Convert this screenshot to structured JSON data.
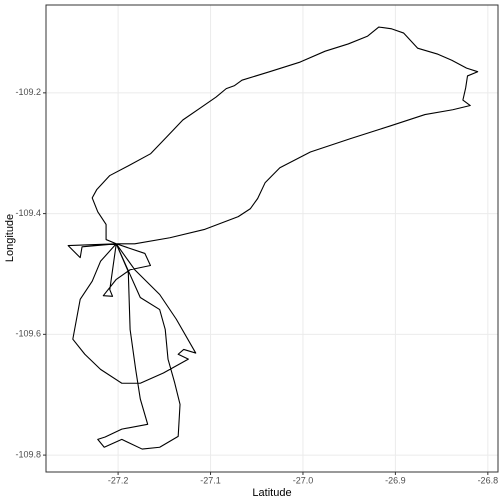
{
  "chart_data": {
    "type": "line",
    "x_label": "Latitude",
    "y_label": "Longitude",
    "color": "#000000",
    "grid": true,
    "xlim": [
      -27.278,
      -26.789
    ],
    "ylim": [
      -109.828,
      -109.0545
    ],
    "xticks": [
      -27.2,
      -27.1,
      {
        "value": -27,
        "label": "-27.0"
      },
      -26.9,
      -26.8
    ],
    "yticks": [
      -109.2,
      -109.4,
      -109.6,
      -109.8
    ],
    "x": [
      -27.202,
      -27.213,
      -27.213,
      -27.222,
      -27.228,
      -27.223,
      -27.209,
      -27.189,
      -27.165,
      -27.148,
      -27.13,
      -27.111,
      -27.094,
      -27.083,
      -27.074,
      -27.066,
      -27.036,
      -27.003,
      -26.976,
      -26.951,
      -26.93,
      -26.918,
      -26.904,
      -26.891,
      -26.876,
      -26.854,
      -26.839,
      -26.823,
      -26.811,
      -26.822,
      -26.824,
      -26.827,
      -26.819,
      -26.838,
      -26.868,
      -26.906,
      -26.949,
      -26.992,
      -27.025,
      -27.041,
      -27.049,
      -27.057,
      -27.07,
      -27.106,
      -27.144,
      -27.182,
      -27.202,
      -27.254,
      -27.241,
      -27.239,
      -27.202,
      -27.171,
      -27.165,
      -27.187,
      -27.202,
      -27.216,
      -27.206,
      -27.209,
      -27.202,
      -27.219,
      -27.228,
      -27.241,
      -27.249,
      -27.236,
      -27.219,
      -27.196,
      -27.176,
      -27.151,
      -27.124,
      -27.135,
      -27.129,
      -27.116,
      -27.137,
      -27.155,
      -27.182,
      -27.202,
      -27.189,
      -27.187,
      -27.181,
      -27.176,
      -27.168,
      -27.196,
      -27.214,
      -27.222,
      -27.215,
      -27.196,
      -27.174,
      -27.155,
      -27.135,
      -27.133,
      -27.139,
      -27.146,
      -27.149,
      -27.155,
      -27.176,
      -27.202
    ],
    "values": [
      -109.45,
      -109.443,
      -109.418,
      -109.397,
      -109.374,
      -109.36,
      -109.337,
      -109.321,
      -109.301,
      -109.274,
      -109.245,
      -109.225,
      -109.207,
      -109.193,
      -109.188,
      -109.179,
      -109.165,
      -109.149,
      -109.131,
      -109.119,
      -109.106,
      -109.091,
      -109.094,
      -109.101,
      -109.126,
      -109.136,
      -109.146,
      -109.159,
      -109.165,
      -109.172,
      -109.192,
      -109.212,
      -109.221,
      -109.228,
      -109.236,
      -109.255,
      -109.276,
      -109.298,
      -109.324,
      -109.349,
      -109.375,
      -109.392,
      -109.405,
      -109.426,
      -109.44,
      -109.45,
      -109.45,
      -109.453,
      -109.473,
      -109.455,
      -109.45,
      -109.466,
      -109.486,
      -109.493,
      -109.509,
      -109.536,
      -109.537,
      -109.526,
      -109.45,
      -109.479,
      -109.512,
      -109.542,
      -109.608,
      -109.633,
      -109.658,
      -109.681,
      -109.681,
      -109.664,
      -109.641,
      -109.633,
      -109.625,
      -109.631,
      -109.575,
      -109.534,
      -109.493,
      -109.45,
      -109.496,
      -109.592,
      -109.658,
      -109.707,
      -109.749,
      -109.757,
      -109.77,
      -109.774,
      -109.787,
      -109.774,
      -109.79,
      -109.787,
      -109.769,
      -109.716,
      -109.679,
      -109.641,
      -109.592,
      -109.559,
      -109.539,
      -109.45
    ]
  }
}
